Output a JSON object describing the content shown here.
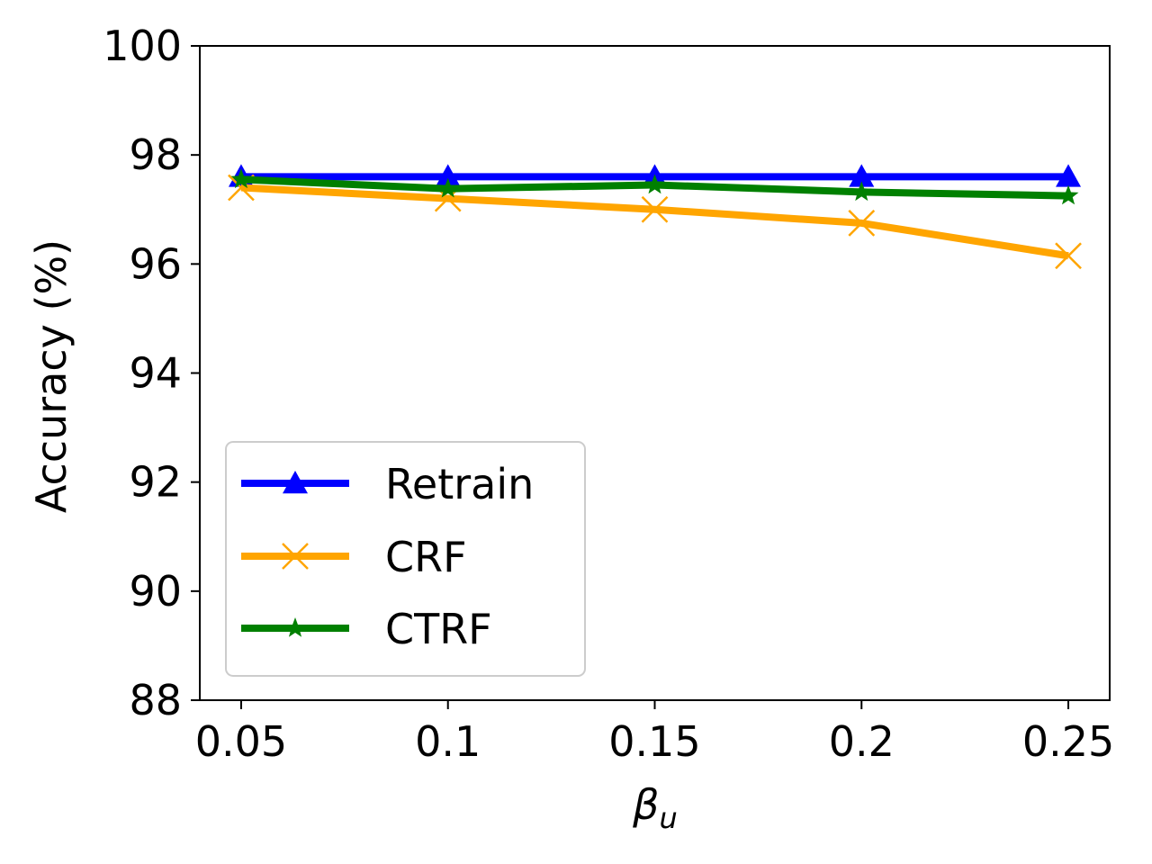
{
  "chart_data": {
    "type": "line",
    "x": [
      0.05,
      0.1,
      0.15,
      0.2,
      0.25
    ],
    "x_tick_labels": [
      "0.05",
      "0.1",
      "0.15",
      "0.2",
      "0.25"
    ],
    "y_ticks": [
      88,
      90,
      92,
      94,
      96,
      98,
      100
    ],
    "y_tick_labels": [
      "88",
      "90",
      "92",
      "94",
      "96",
      "98",
      "100"
    ],
    "xlim": [
      0.04,
      0.26
    ],
    "ylim": [
      88,
      100
    ],
    "xlabel": "β",
    "xlabel_subscript": "u",
    "ylabel": "Accuracy (%)",
    "title": "",
    "grid": false,
    "legend_position": "lower-left",
    "series": [
      {
        "name": "Retrain",
        "color": "#0000ff",
        "marker": "triangle",
        "values": [
          97.6,
          97.6,
          97.6,
          97.6,
          97.6
        ]
      },
      {
        "name": "CRF",
        "color": "#ffa500",
        "marker": "x",
        "values": [
          97.4,
          97.2,
          97.0,
          96.75,
          96.15
        ]
      },
      {
        "name": "CTRF",
        "color": "#008000",
        "marker": "star",
        "values": [
          97.55,
          97.38,
          97.45,
          97.32,
          97.25
        ]
      }
    ]
  }
}
